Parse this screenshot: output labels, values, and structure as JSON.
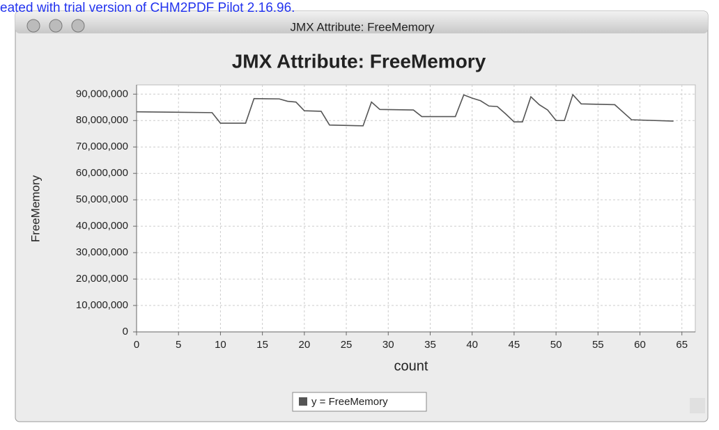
{
  "watermark": "eated with trial version of CHM2PDF Pilot 2.16.96.",
  "window": {
    "title": "JMX Attribute: FreeMemory"
  },
  "chart_data": {
    "type": "line",
    "title": "JMX Attribute: FreeMemory",
    "x_label": "count",
    "y_label": "FreeMemory",
    "x": [
      0,
      9,
      10,
      13,
      14,
      17,
      18,
      19,
      20,
      22,
      23,
      27,
      28,
      29,
      33,
      34,
      38,
      39,
      40,
      41,
      42,
      43,
      44,
      45,
      46,
      47,
      48,
      49,
      50,
      51,
      52,
      53,
      57,
      59,
      64
    ],
    "series": [
      {
        "name": "y = FreeMemory",
        "color": "#555555",
        "values": [
          83300000,
          83000000,
          79000000,
          79000000,
          88300000,
          88200000,
          87300000,
          87000000,
          83700000,
          83500000,
          78300000,
          78000000,
          87000000,
          84200000,
          84000000,
          81500000,
          81500000,
          89700000,
          88500000,
          87500000,
          85500000,
          85300000,
          82500000,
          79500000,
          79500000,
          89000000,
          86000000,
          84000000,
          80000000,
          80000000,
          89800000,
          86300000,
          86000000,
          80300000,
          79800000
        ]
      }
    ],
    "xlim": [
      0,
      66.6
    ],
    "xticks": [
      0,
      5,
      10,
      15,
      20,
      25,
      30,
      35,
      40,
      45,
      50,
      55,
      60,
      65
    ],
    "ylim": [
      0,
      93500000
    ],
    "yticks": [
      0,
      {
        "value": 10000000,
        "label": "10,000,000"
      },
      {
        "value": 20000000,
        "label": "20,000,000"
      },
      {
        "value": 30000000,
        "label": "30,000,000"
      },
      {
        "value": 40000000,
        "label": "40,000,000"
      },
      {
        "value": 50000000,
        "label": "50,000,000"
      },
      {
        "value": 60000000,
        "label": "60,000,000"
      },
      {
        "value": 70000000,
        "label": "70,000,000"
      },
      {
        "value": 80000000,
        "label": "80,000,000"
      },
      {
        "value": 90000000,
        "label": "90,000,000"
      }
    ],
    "grid": true,
    "legend": "bottom"
  }
}
